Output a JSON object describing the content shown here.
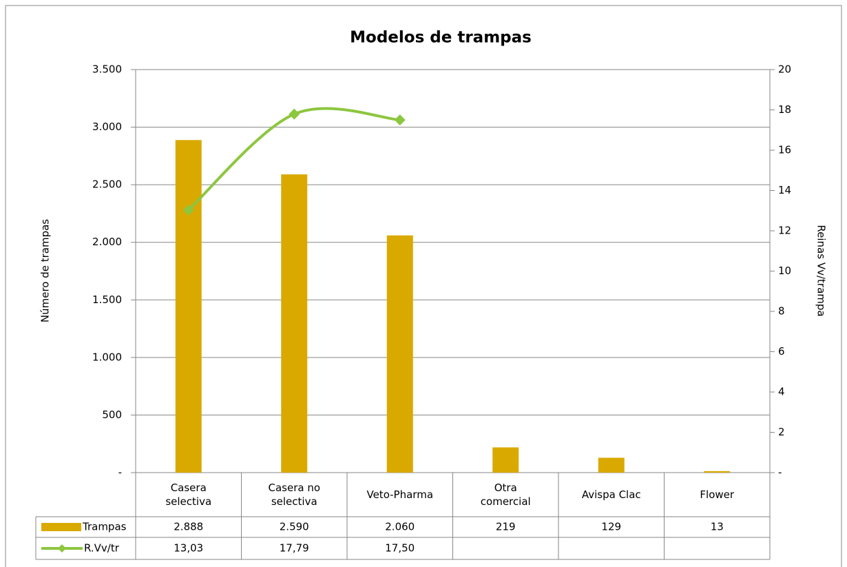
{
  "chart_data": {
    "type": "bar",
    "title": "Modelos de trampas",
    "y_label": "Número de trampas",
    "y2_label": "Reinas Vv/trampa",
    "categories": [
      "Casera selectiva",
      "Casera no selectiva",
      "Veto-Pharma",
      "Otra comercial",
      "Avispa Clac",
      "Flower"
    ],
    "series": [
      {
        "name": "Trampas",
        "type": "bar",
        "color": "#d9a900",
        "values": [
          2888,
          2590,
          2060,
          219,
          129,
          13
        ],
        "value_labels": [
          "2.888",
          "2.590",
          "2.060",
          "219",
          "129",
          "13"
        ]
      },
      {
        "name": "R.Vv/tr",
        "type": "line",
        "axis": "y2",
        "color": "#8dc63f",
        "values": [
          13.03,
          17.79,
          17.5,
          null,
          null,
          null
        ],
        "value_labels": [
          "13,03",
          "17,79",
          "17,50",
          null,
          null,
          null
        ]
      }
    ],
    "ylim": [
      0,
      3500
    ],
    "yticks": [
      {
        "value": 0,
        "label": "-"
      },
      500,
      {
        "value": 1000,
        "label": "1.000"
      },
      {
        "value": 1500,
        "label": "1.500"
      },
      {
        "value": 2000,
        "label": "2.000"
      },
      {
        "value": 2500,
        "label": "2.500"
      },
      {
        "value": 3000,
        "label": "3.000"
      },
      {
        "value": 3500,
        "label": "3.500"
      }
    ],
    "y2lim": [
      0,
      20
    ],
    "y2ticks": [
      {
        "value": 0,
        "label": "-"
      },
      2,
      4,
      6,
      8,
      10,
      12,
      14,
      16,
      18,
      20
    ],
    "grid": true,
    "legend": "table"
  }
}
